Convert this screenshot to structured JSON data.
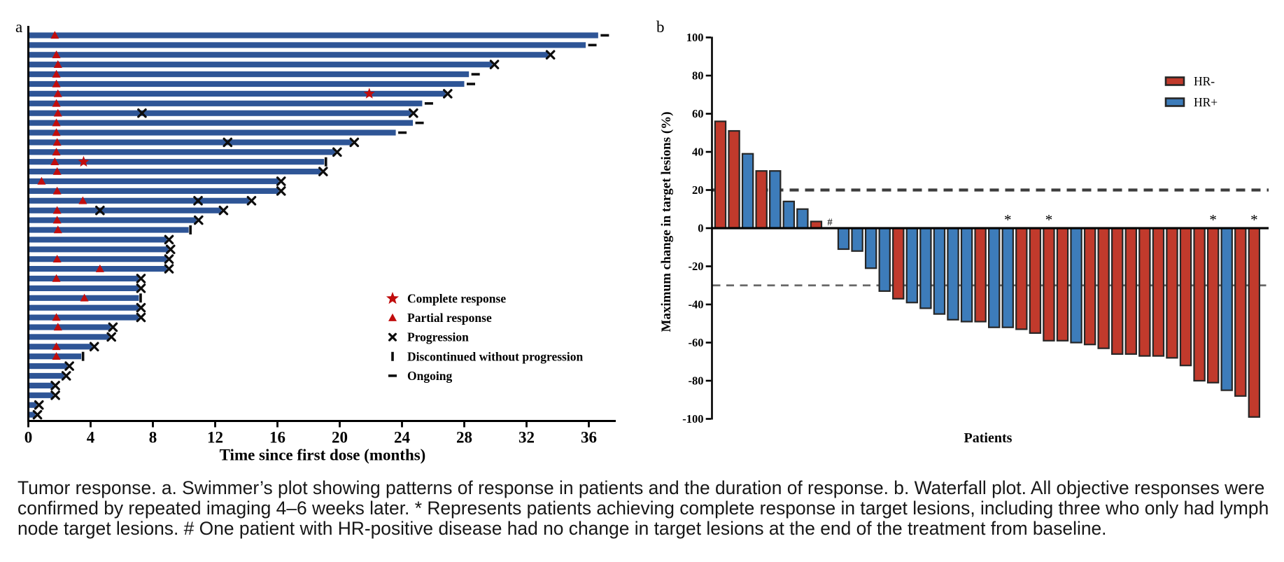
{
  "figure": {
    "panel_a_label": "a",
    "panel_b_label": "b"
  },
  "caption": {
    "lines": [
      "Tumor response. a. Swimmer’s plot showing patterns of response in patients and the duration of response. b. Waterfall plot. All objective responses were",
      "confirmed by repeated imaging 4–6 weeks later. * Represents patients achieving complete response in target lesions, including three who only had lymph",
      "node target lesions. # One patient with HR-positive disease had no change in target lesions at the end of the treatment from baseline."
    ]
  },
  "colors": {
    "swimmer_bar": "#2e5596",
    "response_marker_red": "#c00d0d",
    "black_marker": "#0d0d0d",
    "waterfall_hr_neg": "#c13a2c",
    "waterfall_hr_pos": "#3d7cba",
    "bar_outline": "#262626",
    "dashed_line_20": "#3d3d3d",
    "dashed_line_30": "#686868",
    "axis": "#000000"
  },
  "chart_data": [
    {
      "type": "bar",
      "name": "swimmer-plot",
      "orientation": "horizontal",
      "title": "",
      "xlabel": "Time since first dose (months)",
      "ylabel": "",
      "xlim": [
        0,
        38
      ],
      "xticks": [
        0,
        4,
        8,
        12,
        16,
        20,
        24,
        28,
        32,
        36
      ],
      "grid": false,
      "legend_position": "lower right inside",
      "legend": [
        {
          "marker": "star",
          "label": "Complete response"
        },
        {
          "marker": "triangle",
          "label": "Partial response"
        },
        {
          "marker": "x",
          "label": "Progression"
        },
        {
          "marker": "bar",
          "label": "Discontinued without progression"
        },
        {
          "marker": "dash",
          "label": "Ongoing"
        }
      ],
      "bars": [
        {
          "duration": 36.6,
          "end": "ongoing",
          "events": [
            {
              "type": "partial_response",
              "t": 1.7
            }
          ]
        },
        {
          "duration": 35.8,
          "end": "ongoing",
          "events": []
        },
        {
          "duration": 33.4,
          "end": "progression",
          "events": [
            {
              "type": "partial_response",
              "t": 1.8
            }
          ]
        },
        {
          "duration": 29.8,
          "end": "progression",
          "events": [
            {
              "type": "partial_response",
              "t": 1.9
            }
          ]
        },
        {
          "duration": 28.3,
          "end": "ongoing",
          "events": [
            {
              "type": "partial_response",
              "t": 1.8
            }
          ]
        },
        {
          "duration": 28.0,
          "end": "ongoing",
          "events": [
            {
              "type": "partial_response",
              "t": 1.8
            }
          ]
        },
        {
          "duration": 26.8,
          "end": "progression",
          "events": [
            {
              "type": "partial_response",
              "t": 1.9
            },
            {
              "type": "complete_response",
              "t": 21.9
            }
          ]
        },
        {
          "duration": 25.3,
          "end": "ongoing",
          "events": [
            {
              "type": "partial_response",
              "t": 1.8
            }
          ]
        },
        {
          "duration": 24.6,
          "end": "progression",
          "events": [
            {
              "type": "partial_response",
              "t": 1.9
            },
            {
              "type": "progression",
              "t": 7.3
            }
          ]
        },
        {
          "duration": 24.7,
          "end": "ongoing",
          "events": [
            {
              "type": "partial_response",
              "t": 1.8
            }
          ]
        },
        {
          "duration": 23.6,
          "end": "ongoing",
          "events": [
            {
              "type": "partial_response",
              "t": 1.8
            }
          ]
        },
        {
          "duration": 20.8,
          "end": "progression",
          "events": [
            {
              "type": "partial_response",
              "t": 1.85
            },
            {
              "type": "progression",
              "t": 12.8
            }
          ]
        },
        {
          "duration": 19.7,
          "end": "progression",
          "events": [
            {
              "type": "partial_response",
              "t": 1.8
            }
          ]
        },
        {
          "duration": 19.0,
          "end": "discontinued",
          "events": [
            {
              "type": "partial_response",
              "t": 1.7
            },
            {
              "type": "complete_response",
              "t": 3.55
            }
          ]
        },
        {
          "duration": 18.8,
          "end": "progression",
          "events": [
            {
              "type": "partial_response",
              "t": 1.85
            }
          ]
        },
        {
          "duration": 16.1,
          "end": "progression",
          "events": [
            {
              "type": "partial_response",
              "t": 0.85
            }
          ]
        },
        {
          "duration": 16.1,
          "end": "progression",
          "events": [
            {
              "type": "partial_response",
              "t": 1.85
            }
          ]
        },
        {
          "duration": 14.2,
          "end": "progression",
          "events": [
            {
              "type": "partial_response",
              "t": 3.5
            },
            {
              "type": "progression",
              "t": 10.9
            }
          ]
        },
        {
          "duration": 12.4,
          "end": "progression",
          "events": [
            {
              "type": "partial_response",
              "t": 1.85
            },
            {
              "type": "progression",
              "t": 4.6
            }
          ]
        },
        {
          "duration": 10.8,
          "end": "progression",
          "events": [
            {
              "type": "partial_response",
              "t": 1.85
            }
          ]
        },
        {
          "duration": 10.3,
          "end": "discontinued",
          "events": [
            {
              "type": "partial_response",
              "t": 1.9
            }
          ]
        },
        {
          "duration": 8.9,
          "end": "progression",
          "events": []
        },
        {
          "duration": 9.0,
          "end": "progression",
          "events": []
        },
        {
          "duration": 8.9,
          "end": "progression",
          "events": [
            {
              "type": "partial_response",
              "t": 1.85
            }
          ]
        },
        {
          "duration": 8.9,
          "end": "progression",
          "events": [
            {
              "type": "partial_response",
              "t": 4.6
            }
          ]
        },
        {
          "duration": 7.1,
          "end": "progression",
          "events": [
            {
              "type": "partial_response",
              "t": 1.8
            }
          ]
        },
        {
          "duration": 7.1,
          "end": "progression",
          "events": []
        },
        {
          "duration": 7.1,
          "end": "discontinued",
          "events": [
            {
              "type": "partial_response",
              "t": 3.6
            }
          ]
        },
        {
          "duration": 7.1,
          "end": "progression",
          "events": []
        },
        {
          "duration": 7.1,
          "end": "progression",
          "events": [
            {
              "type": "partial_response",
              "t": 1.8
            }
          ]
        },
        {
          "duration": 5.3,
          "end": "progression",
          "events": [
            {
              "type": "partial_response",
              "t": 1.9
            }
          ]
        },
        {
          "duration": 5.2,
          "end": "progression",
          "events": []
        },
        {
          "duration": 4.1,
          "end": "progression",
          "events": [
            {
              "type": "partial_response",
              "t": 1.8
            }
          ]
        },
        {
          "duration": 3.4,
          "end": "discontinued",
          "events": [
            {
              "type": "partial_response",
              "t": 1.8
            }
          ]
        },
        {
          "duration": 2.5,
          "end": "progression",
          "events": []
        },
        {
          "duration": 2.3,
          "end": "progression",
          "events": []
        },
        {
          "duration": 1.6,
          "end": "progression",
          "events": []
        },
        {
          "duration": 1.6,
          "end": "progression",
          "events": []
        },
        {
          "duration": 0.55,
          "end": "progression",
          "events": []
        },
        {
          "duration": 0.45,
          "end": "progression",
          "events": []
        }
      ]
    },
    {
      "type": "bar",
      "name": "waterfall-plot",
      "orientation": "vertical",
      "title": "",
      "xlabel": "Patients",
      "ylabel": "Maximum change in target lesions (%)",
      "ylim": [
        -100,
        100
      ],
      "yticks": [
        100,
        80,
        60,
        40,
        20,
        0,
        -20,
        -40,
        -60,
        -80,
        -100
      ],
      "reference_lines": [
        {
          "y": 20,
          "style": "dashed",
          "weight": "thick"
        },
        {
          "y": -30,
          "style": "dashed",
          "weight": "thin"
        }
      ],
      "grid": false,
      "legend_position": "upper right inside",
      "legend": [
        {
          "swatch": "hr_neg",
          "label": "HR-"
        },
        {
          "swatch": "hr_pos",
          "label": "HR+"
        }
      ],
      "patients": [
        {
          "value": 56,
          "group": "HR-",
          "annotation": ""
        },
        {
          "value": 51,
          "group": "HR-",
          "annotation": ""
        },
        {
          "value": 39,
          "group": "HR+",
          "annotation": ""
        },
        {
          "value": 30,
          "group": "HR-",
          "annotation": ""
        },
        {
          "value": 30,
          "group": "HR+",
          "annotation": ""
        },
        {
          "value": 14,
          "group": "HR+",
          "annotation": ""
        },
        {
          "value": 10,
          "group": "HR+",
          "annotation": ""
        },
        {
          "value": 3.5,
          "group": "HR-",
          "annotation": ""
        },
        {
          "value": 0,
          "group": "HR+",
          "annotation": "#"
        },
        {
          "value": -11,
          "group": "HR+",
          "annotation": ""
        },
        {
          "value": -12,
          "group": "HR+",
          "annotation": ""
        },
        {
          "value": -21,
          "group": "HR+",
          "annotation": ""
        },
        {
          "value": -33,
          "group": "HR+",
          "annotation": ""
        },
        {
          "value": -37,
          "group": "HR-",
          "annotation": ""
        },
        {
          "value": -39,
          "group": "HR+",
          "annotation": ""
        },
        {
          "value": -42,
          "group": "HR+",
          "annotation": ""
        },
        {
          "value": -45,
          "group": "HR+",
          "annotation": ""
        },
        {
          "value": -48,
          "group": "HR+",
          "annotation": ""
        },
        {
          "value": -49,
          "group": "HR+",
          "annotation": ""
        },
        {
          "value": -49,
          "group": "HR-",
          "annotation": ""
        },
        {
          "value": -52,
          "group": "HR+",
          "annotation": ""
        },
        {
          "value": -52,
          "group": "HR+",
          "annotation": "*"
        },
        {
          "value": -53,
          "group": "HR-",
          "annotation": ""
        },
        {
          "value": -55,
          "group": "HR-",
          "annotation": ""
        },
        {
          "value": -59,
          "group": "HR-",
          "annotation": "*"
        },
        {
          "value": -59,
          "group": "HR-",
          "annotation": ""
        },
        {
          "value": -60,
          "group": "HR+",
          "annotation": ""
        },
        {
          "value": -61,
          "group": "HR-",
          "annotation": ""
        },
        {
          "value": -63,
          "group": "HR-",
          "annotation": ""
        },
        {
          "value": -66,
          "group": "HR-",
          "annotation": ""
        },
        {
          "value": -66,
          "group": "HR-",
          "annotation": ""
        },
        {
          "value": -67,
          "group": "HR-",
          "annotation": ""
        },
        {
          "value": -67,
          "group": "HR-",
          "annotation": ""
        },
        {
          "value": -68,
          "group": "HR-",
          "annotation": ""
        },
        {
          "value": -72,
          "group": "HR-",
          "annotation": ""
        },
        {
          "value": -80,
          "group": "HR-",
          "annotation": ""
        },
        {
          "value": -81,
          "group": "HR-",
          "annotation": "*"
        },
        {
          "value": -85,
          "group": "HR+",
          "annotation": ""
        },
        {
          "value": -88,
          "group": "HR-",
          "annotation": ""
        },
        {
          "value": -99,
          "group": "HR-",
          "annotation": "*"
        }
      ]
    }
  ]
}
